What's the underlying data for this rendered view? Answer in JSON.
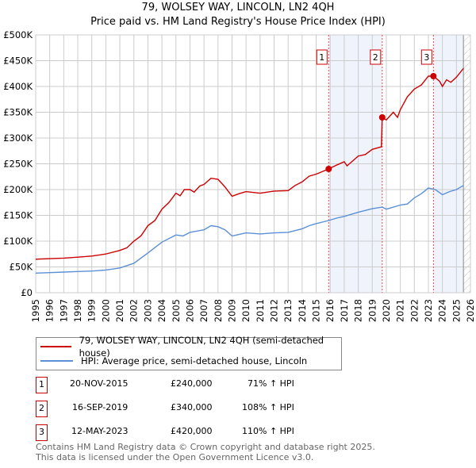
{
  "title": "79, WOLSEY WAY, LINCOLN, LN2 4QH",
  "subtitle": "Price paid vs. HM Land Registry's House Price Index (HPI)",
  "chart_data": {
    "type": "line",
    "title": "79, WOLSEY WAY, LINCOLN, LN2 4QH — Price paid vs. HM Land Registry's House Price Index (HPI)",
    "xlim": [
      1995,
      2026
    ],
    "ylim": [
      0,
      500000
    ],
    "x_ticks": [
      "1995",
      "1996",
      "1997",
      "1998",
      "1999",
      "2000",
      "2001",
      "2002",
      "2003",
      "2004",
      "2005",
      "2006",
      "2007",
      "2008",
      "2009",
      "2010",
      "2011",
      "2012",
      "2013",
      "2014",
      "2015",
      "2016",
      "2017",
      "2018",
      "2019",
      "2020",
      "2021",
      "2022",
      "2023",
      "2024",
      "2025",
      "2026"
    ],
    "y_ticks": [
      {
        "v": 0,
        "label": "£0"
      },
      {
        "v": 50000,
        "label": "£50K"
      },
      {
        "v": 100000,
        "label": "£100K"
      },
      {
        "v": 150000,
        "label": "£150K"
      },
      {
        "v": 200000,
        "label": "£200K"
      },
      {
        "v": 250000,
        "label": "£250K"
      },
      {
        "v": 300000,
        "label": "£300K"
      },
      {
        "v": 350000,
        "label": "£350K"
      },
      {
        "v": 400000,
        "label": "£400K"
      },
      {
        "v": 450000,
        "label": "£450K"
      },
      {
        "v": 500000,
        "label": "£500K"
      }
    ],
    "series": [
      {
        "name": "79, WOLSEY WAY, LINCOLN, LN2 4QH (semi-detached house)",
        "color": "#cc0000",
        "points": [
          [
            1995,
            65000
          ],
          [
            1996,
            66000
          ],
          [
            1997,
            67000
          ],
          [
            1998,
            69000
          ],
          [
            1999,
            71000
          ],
          [
            2000,
            75000
          ],
          [
            2001,
            82000
          ],
          [
            2001.5,
            87000
          ],
          [
            2002,
            100000
          ],
          [
            2002.5,
            110000
          ],
          [
            2003,
            130000
          ],
          [
            2003.5,
            140000
          ],
          [
            2004,
            162000
          ],
          [
            2004.5,
            175000
          ],
          [
            2005,
            193000
          ],
          [
            2005.3,
            188000
          ],
          [
            2005.6,
            200000
          ],
          [
            2006,
            200000
          ],
          [
            2006.3,
            195000
          ],
          [
            2006.7,
            207000
          ],
          [
            2007,
            210000
          ],
          [
            2007.5,
            222000
          ],
          [
            2008,
            220000
          ],
          [
            2008.5,
            205000
          ],
          [
            2009,
            187000
          ],
          [
            2009.5,
            192000
          ],
          [
            2010,
            196000
          ],
          [
            2011,
            193000
          ],
          [
            2012,
            197000
          ],
          [
            2013,
            198000
          ],
          [
            2013.5,
            208000
          ],
          [
            2014,
            215000
          ],
          [
            2014.5,
            226000
          ],
          [
            2015,
            230000
          ],
          [
            2015.89,
            240000
          ],
          [
            2016.5,
            248000
          ],
          [
            2017,
            254000
          ],
          [
            2017.2,
            246000
          ],
          [
            2018,
            265000
          ],
          [
            2018.5,
            268000
          ],
          [
            2019,
            278000
          ],
          [
            2019.65,
            283000
          ],
          [
            2019.71,
            340000
          ],
          [
            2020,
            335000
          ],
          [
            2020.5,
            350000
          ],
          [
            2020.8,
            340000
          ],
          [
            2021,
            355000
          ],
          [
            2021.5,
            380000
          ],
          [
            2022,
            395000
          ],
          [
            2022.5,
            403000
          ],
          [
            2023,
            420000
          ],
          [
            2023.36,
            420000
          ],
          [
            2023.8,
            410000
          ],
          [
            2024,
            400000
          ],
          [
            2024.3,
            413000
          ],
          [
            2024.6,
            408000
          ],
          [
            2025,
            418000
          ],
          [
            2025.5,
            435000
          ]
        ]
      },
      {
        "name": "HPI: Average price, semi-detached house, Lincoln",
        "color": "#5b8fd6",
        "points": [
          [
            1995,
            38000
          ],
          [
            1996,
            39000
          ],
          [
            1997,
            40000
          ],
          [
            1998,
            41000
          ],
          [
            1999,
            42000
          ],
          [
            2000,
            44000
          ],
          [
            2001,
            48000
          ],
          [
            2002,
            57000
          ],
          [
            2003,
            77000
          ],
          [
            2004,
            98000
          ],
          [
            2005,
            112000
          ],
          [
            2005.5,
            110000
          ],
          [
            2006,
            117000
          ],
          [
            2007,
            122000
          ],
          [
            2007.5,
            130000
          ],
          [
            2008,
            128000
          ],
          [
            2008.5,
            122000
          ],
          [
            2009,
            110000
          ],
          [
            2009.5,
            113000
          ],
          [
            2010,
            116000
          ],
          [
            2011,
            114000
          ],
          [
            2012,
            116000
          ],
          [
            2013,
            117000
          ],
          [
            2014,
            124000
          ],
          [
            2014.5,
            130000
          ],
          [
            2015,
            134000
          ],
          [
            2015.89,
            140000
          ],
          [
            2016.5,
            145000
          ],
          [
            2017,
            148000
          ],
          [
            2018,
            156000
          ],
          [
            2019,
            163000
          ],
          [
            2019.71,
            166000
          ],
          [
            2020,
            162000
          ],
          [
            2021,
            170000
          ],
          [
            2021.5,
            172000
          ],
          [
            2022,
            184000
          ],
          [
            2022.5,
            192000
          ],
          [
            2023,
            203000
          ],
          [
            2023.5,
            200000
          ],
          [
            2024,
            190000
          ],
          [
            2024.5,
            196000
          ],
          [
            2025,
            200000
          ],
          [
            2025.5,
            208000
          ]
        ]
      }
    ],
    "sales": [
      {
        "n": "1",
        "x": 2015.89,
        "price": 240000,
        "date": "20-NOV-2015",
        "price_label": "£240,000",
        "hpi": "71% ↑ HPI"
      },
      {
        "n": "2",
        "x": 2019.71,
        "price": 340000,
        "date": "16-SEP-2019",
        "price_label": "£340,000",
        "hpi": "108% ↑ HPI"
      },
      {
        "n": "3",
        "x": 2023.36,
        "price": 420000,
        "date": "12-MAY-2023",
        "price_label": "£420,000",
        "hpi": "110% ↑ HPI"
      }
    ],
    "data_end": 2025.5,
    "legend": "below"
  },
  "footer": [
    "Contains HM Land Registry data © Crown copyright and database right 2025.",
    "This data is licensed under the Open Government Licence v3.0."
  ],
  "colors": {
    "red": "#cc0000",
    "blue": "#5b8fd6",
    "shade": "#eef3fc"
  }
}
